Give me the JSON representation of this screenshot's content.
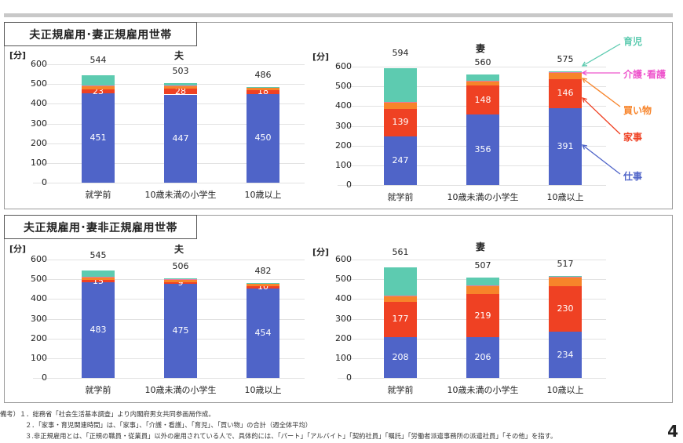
{
  "colors": {
    "work": "#4f64c8",
    "housework": "#ef4123",
    "shopping": "#f7842a",
    "care": "#e87aa0",
    "childcare": "#5dcbb0",
    "legend_care_text": "#ee55cc"
  },
  "panels": [
    {
      "title": "夫正規雇用･妻正規雇用世帯",
      "husband_title": "夫",
      "wife_title": "妻"
    },
    {
      "title": "夫正規雇用･妻非正規雇用世帯",
      "husband_title": "夫",
      "wife_title": "妻"
    }
  ],
  "axis": {
    "unit": "[分]",
    "ticks": [
      "600",
      "500",
      "400",
      "300",
      "200",
      "100",
      "0"
    ],
    "categories": [
      "就学前",
      "10歳未満の小学生",
      "10歳以上"
    ]
  },
  "legend": [
    {
      "key": "childcare",
      "label": "育児",
      "color": "#5dcbb0"
    },
    {
      "key": "care",
      "label": "介護･看護",
      "color": "#ee55cc"
    },
    {
      "key": "shopping",
      "label": "買い物",
      "color": "#f7842a"
    },
    {
      "key": "housework",
      "label": "家事",
      "color": "#ef4123"
    },
    {
      "key": "work",
      "label": "仕事",
      "color": "#4f64c8"
    }
  ],
  "chart_data": [
    {
      "type": "bar",
      "stacked": true,
      "title": "夫正規雇用･妻正規雇用世帯 — 夫",
      "ylabel": "[分]",
      "ylim": [
        0,
        600
      ],
      "categories": [
        "就学前",
        "10歳未満の小学生",
        "10歳以上"
      ],
      "totals": [
        544,
        503,
        486
      ],
      "series": [
        {
          "name": "仕事",
          "values": [
            451,
            447,
            450
          ]
        },
        {
          "name": "家事",
          "values": [
            23,
            28,
            18
          ]
        },
        {
          "name": "買い物",
          "values": [
            17,
            16,
            14
          ]
        },
        {
          "name": "介護･看護",
          "values": [
            1,
            1,
            2
          ]
        },
        {
          "name": "育児",
          "values": [
            52,
            11,
            2
          ]
        }
      ],
      "labeled": {
        "仕事": [
          451,
          447,
          450
        ],
        "家事": [
          23,
          28,
          18
        ]
      }
    },
    {
      "type": "bar",
      "stacked": true,
      "title": "夫正規雇用･妻正規雇用世帯 — 妻",
      "ylabel": "[分]",
      "ylim": [
        0,
        600
      ],
      "categories": [
        "就学前",
        "10歳未満の小学生",
        "10歳以上"
      ],
      "totals": [
        594,
        560,
        575
      ],
      "series": [
        {
          "name": "仕事",
          "values": [
            247,
            356,
            391
          ]
        },
        {
          "name": "家事",
          "values": [
            139,
            148,
            146
          ]
        },
        {
          "name": "買い物",
          "values": [
            30,
            25,
            30
          ]
        },
        {
          "name": "介護･看護",
          "values": [
            4,
            1,
            5
          ]
        },
        {
          "name": "育児",
          "values": [
            174,
            30,
            3
          ]
        }
      ],
      "labeled": {
        "仕事": [
          247,
          356,
          391
        ],
        "家事": [
          139,
          148,
          146
        ]
      }
    },
    {
      "type": "bar",
      "stacked": true,
      "title": "夫正規雇用･妻非正規雇用世帯 — 夫",
      "ylabel": "[分]",
      "ylim": [
        0,
        600
      ],
      "categories": [
        "就学前",
        "10歳未満の小学生",
        "10歳以上"
      ],
      "totals": [
        545,
        506,
        482
      ],
      "series": [
        {
          "name": "仕事",
          "values": [
            483,
            475,
            454
          ]
        },
        {
          "name": "家事",
          "values": [
            15,
            9,
            10
          ]
        },
        {
          "name": "買い物",
          "values": [
            12,
            14,
            14
          ]
        },
        {
          "name": "介護･看護",
          "values": [
            1,
            1,
            2
          ]
        },
        {
          "name": "育児",
          "values": [
            34,
            7,
            2
          ]
        }
      ],
      "labeled": {
        "仕事": [
          483,
          475,
          454
        ],
        "家事": [
          15,
          9,
          10
        ]
      }
    },
    {
      "type": "bar",
      "stacked": true,
      "title": "夫正規雇用･妻非正規雇用世帯 — 妻",
      "ylabel": "[分]",
      "ylim": [
        0,
        600
      ],
      "categories": [
        "就学前",
        "10歳未満の小学生",
        "10歳以上"
      ],
      "totals": [
        561,
        507,
        517
      ],
      "series": [
        {
          "name": "仕事",
          "values": [
            208,
            206,
            234
          ]
        },
        {
          "name": "家事",
          "values": [
            177,
            219,
            230
          ]
        },
        {
          "name": "買い物",
          "values": [
            30,
            43,
            45
          ]
        },
        {
          "name": "介護･看護",
          "values": [
            4,
            1,
            5
          ]
        },
        {
          "name": "育児",
          "values": [
            142,
            38,
            3
          ]
        }
      ],
      "labeled": {
        "仕事": [
          208,
          206,
          234
        ],
        "家事": [
          177,
          219,
          230
        ]
      }
    }
  ],
  "notes": [
    "備考）１．総務省「社会生活基本調査」より内閣府男女共同参画局作成。",
    "２．「家事・育児関連時間」は、「家事」、「介護・看護」、「育児」、「買い物」の合計（週全体平均）",
    "３.非正規雇用とは、「正規の職員・従業員」以外の雇用されている人で、具体的には、「パート」「アルバイト」「契約社員」「嘱託」「労働者派遣事務所の派遣社員」「その他」を指す。"
  ],
  "page_number": "4"
}
